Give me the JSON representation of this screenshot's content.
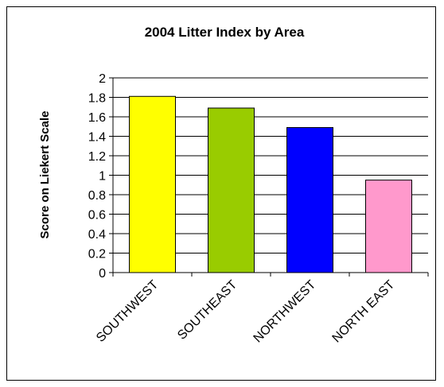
{
  "chart_data": {
    "type": "bar",
    "title": "2004 Litter Index by Area",
    "ylabel": "Score on Liekert Scale",
    "xlabel": "",
    "categories": [
      "SOUTHWEST",
      "SOUTHEAST",
      "NORTHWEST",
      "NORTH EAST"
    ],
    "values": [
      1.81,
      1.69,
      1.49,
      0.95
    ],
    "colors": [
      "#FFFF00",
      "#99CC00",
      "#0000FF",
      "#FF99CC"
    ],
    "ylim": [
      0,
      2
    ],
    "yticks": [
      "0",
      "0.2",
      "0.4",
      "0.6",
      "0.8",
      "1",
      "1.2",
      "1.4",
      "1.6",
      "1.8",
      "2"
    ],
    "grid": true,
    "legend": "none"
  }
}
